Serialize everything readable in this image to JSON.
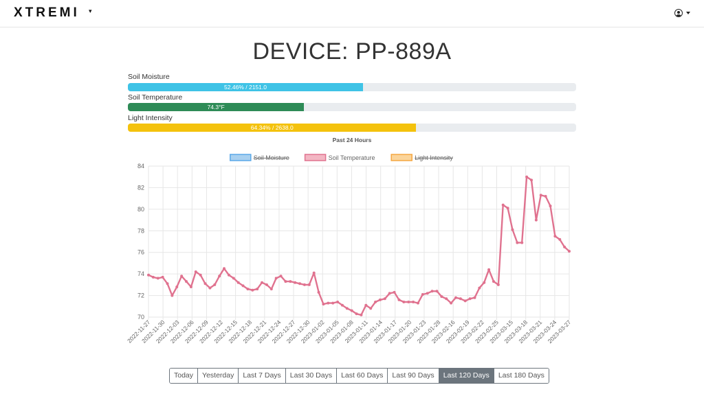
{
  "app": {
    "brand": "XTREMI"
  },
  "page": {
    "title": "DEVICE: PP-889A"
  },
  "metrics": [
    {
      "label": "Soil Moisture",
      "bar_text": "52.46% / 2151.0",
      "fraction": 0.5246,
      "color": "#3fc3e6"
    },
    {
      "label": "Soil Temperature",
      "bar_text": "74.3°F",
      "fraction": 0.393,
      "color": "#2e8b57"
    },
    {
      "label": "Light Intensity",
      "bar_text": "64.34% / 2638.0",
      "fraction": 0.6434,
      "color": "#f4c20d"
    }
  ],
  "chart_data": {
    "type": "line",
    "title": "Past 24 Hours",
    "legend": [
      {
        "name": "Soil Moisture",
        "hidden": true,
        "fill": "#a8d0f0",
        "stroke": "#5aa8e8"
      },
      {
        "name": "Soil Temperature",
        "hidden": false,
        "fill": "#f3b6c3",
        "stroke": "#e0728f"
      },
      {
        "name": "Light Intensity",
        "hidden": true,
        "fill": "#fbd49a",
        "stroke": "#f5a742"
      }
    ],
    "legend_placement": "top",
    "ylim": [
      70,
      84
    ],
    "yticks": [
      70,
      72,
      74,
      76,
      78,
      80,
      82,
      84
    ],
    "grid": true,
    "xtick_labels": [
      "2022-11-27",
      "2022-11-30",
      "2022-12-03",
      "2022-12-06",
      "2022-12-09",
      "2022-12-12",
      "2022-12-15",
      "2022-12-18",
      "2022-12-21",
      "2022-12-24",
      "2022-12-27",
      "2022-12-30",
      "2023-01-02",
      "2023-01-05",
      "2023-01-08",
      "2023-01-11",
      "2023-01-14",
      "2023-01-17",
      "2023-01-20",
      "2023-01-23",
      "2023-01-28",
      "2023-02-16",
      "2023-02-19",
      "2023-02-22",
      "2023-02-25",
      "2023-03-15",
      "2023-03-18",
      "2023-03-21",
      "2023-03-24",
      "2023-03-27"
    ],
    "series": [
      {
        "name": "Soil Temperature",
        "color": "#e0728f",
        "values": [
          73.9,
          73.7,
          73.6,
          73.7,
          73.1,
          72.0,
          72.8,
          73.8,
          73.3,
          72.8,
          74.2,
          73.9,
          73.1,
          72.7,
          73.0,
          73.8,
          74.5,
          73.9,
          73.6,
          73.2,
          72.9,
          72.6,
          72.5,
          72.6,
          73.2,
          73.0,
          72.6,
          73.6,
          73.8,
          73.3,
          73.3,
          73.2,
          73.1,
          73.0,
          73.0,
          74.1,
          72.3,
          71.2,
          71.3,
          71.3,
          71.4,
          71.1,
          70.8,
          70.6,
          70.3,
          70.2,
          71.1,
          70.8,
          71.4,
          71.6,
          71.7,
          72.2,
          72.3,
          71.6,
          71.4,
          71.4,
          71.4,
          71.3,
          72.1,
          72.2,
          72.4,
          72.4,
          71.9,
          71.7,
          71.3,
          71.8,
          71.7,
          71.5,
          71.7,
          71.8,
          72.7,
          73.2,
          74.4,
          73.3,
          73.0,
          80.4,
          80.1,
          78.1,
          76.9,
          76.9,
          83.0,
          82.7,
          79.0,
          81.3,
          81.2,
          80.3,
          77.5,
          77.2,
          76.5,
          76.1
        ]
      }
    ]
  },
  "ranges": [
    {
      "label": "Today",
      "active": false
    },
    {
      "label": "Yesterday",
      "active": false
    },
    {
      "label": "Last 7 Days",
      "active": false
    },
    {
      "label": "Last 30 Days",
      "active": false
    },
    {
      "label": "Last 60 Days",
      "active": false
    },
    {
      "label": "Last 90 Days",
      "active": false
    },
    {
      "label": "Last 120 Days",
      "active": true
    },
    {
      "label": "Last 180 Days",
      "active": false
    }
  ]
}
